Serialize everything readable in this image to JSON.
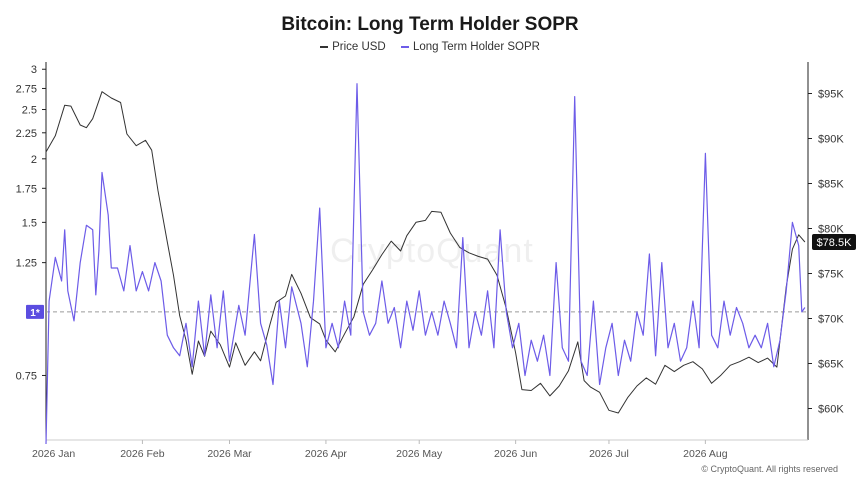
{
  "chart_data": {
    "type": "line",
    "title": "Bitcoin: Long Term Holder SOPR",
    "legend_position": "top-center",
    "grid": false,
    "x_ticks": [
      "2026 Jan",
      "2026 Feb",
      "2026 Mar",
      "2026 Apr",
      "2026 May",
      "2026 Jun",
      "2026 Jul",
      "2026 Aug"
    ],
    "x_range": [
      "2026-01-01",
      "2026-09-03"
    ],
    "left_axis": {
      "scale": "log",
      "ticks": [
        "0.75",
        "1.25",
        "1.5",
        "1.75",
        "2",
        "2.25",
        "2.5",
        "2.75",
        "3"
      ],
      "range": [
        0.56,
        3.1
      ],
      "marker_label": "1*"
    },
    "right_axis": {
      "ticks": [
        "$60K",
        "$65K",
        "$70K",
        "$75K",
        "$80K",
        "$85K",
        "$90K",
        "$95K"
      ],
      "range": [
        56500,
        98500
      ],
      "current_label": "$78.5K"
    },
    "reference_line": 1,
    "series": [
      {
        "name": "Price USD",
        "color": "#333333",
        "axis": "right",
        "points": [
          [
            "2026-01-01",
            88500
          ],
          [
            "2026-01-04",
            90300
          ],
          [
            "2026-01-07",
            93700
          ],
          [
            "2026-01-09",
            93600
          ],
          [
            "2026-01-12",
            91500
          ],
          [
            "2026-01-14",
            91200
          ],
          [
            "2026-01-16",
            92200
          ],
          [
            "2026-01-19",
            95200
          ],
          [
            "2026-01-22",
            94500
          ],
          [
            "2026-01-25",
            94000
          ],
          [
            "2026-01-27",
            90500
          ],
          [
            "2026-01-30",
            89200
          ],
          [
            "2026-02-02",
            89800
          ],
          [
            "2026-02-04",
            88700
          ],
          [
            "2026-02-06",
            84200
          ],
          [
            "2026-02-09",
            78500
          ],
          [
            "2026-02-11",
            74800
          ],
          [
            "2026-02-13",
            70300
          ],
          [
            "2026-02-15",
            67600
          ],
          [
            "2026-02-17",
            63800
          ],
          [
            "2026-02-19",
            67500
          ],
          [
            "2026-02-21",
            65800
          ],
          [
            "2026-02-23",
            68600
          ],
          [
            "2026-02-26",
            67100
          ],
          [
            "2026-03-01",
            64600
          ],
          [
            "2026-03-03",
            67300
          ],
          [
            "2026-03-06",
            64800
          ],
          [
            "2026-03-09",
            66300
          ],
          [
            "2026-03-11",
            65300
          ],
          [
            "2026-03-14",
            69300
          ],
          [
            "2026-03-16",
            71800
          ],
          [
            "2026-03-19",
            72500
          ],
          [
            "2026-03-21",
            74900
          ],
          [
            "2026-03-24",
            72800
          ],
          [
            "2026-03-27",
            70100
          ],
          [
            "2026-03-30",
            69400
          ],
          [
            "2026-04-01",
            67600
          ],
          [
            "2026-04-04",
            66300
          ],
          [
            "2026-04-07",
            68300
          ],
          [
            "2026-04-10",
            70200
          ],
          [
            "2026-04-13",
            73800
          ],
          [
            "2026-04-16",
            75400
          ],
          [
            "2026-04-19",
            77100
          ],
          [
            "2026-04-22",
            78600
          ],
          [
            "2026-04-25",
            77500
          ],
          [
            "2026-04-27",
            79200
          ],
          [
            "2026-04-30",
            80700
          ],
          [
            "2026-05-03",
            80900
          ],
          [
            "2026-05-05",
            81900
          ],
          [
            "2026-05-08",
            81800
          ],
          [
            "2026-05-11",
            79500
          ],
          [
            "2026-05-14",
            77900
          ],
          [
            "2026-05-17",
            77300
          ],
          [
            "2026-05-20",
            76900
          ],
          [
            "2026-05-23",
            76600
          ],
          [
            "2026-05-26",
            74800
          ],
          [
            "2026-05-29",
            71100
          ],
          [
            "2026-06-01",
            66200
          ],
          [
            "2026-06-03",
            62100
          ],
          [
            "2026-06-06",
            62000
          ],
          [
            "2026-06-09",
            62800
          ],
          [
            "2026-06-12",
            61400
          ],
          [
            "2026-06-15",
            62500
          ],
          [
            "2026-06-18",
            64200
          ],
          [
            "2026-06-21",
            67400
          ],
          [
            "2026-06-23",
            63100
          ],
          [
            "2026-06-25",
            62400
          ],
          [
            "2026-06-28",
            61800
          ],
          [
            "2026-07-01",
            59800
          ],
          [
            "2026-07-04",
            59500
          ],
          [
            "2026-07-07",
            61200
          ],
          [
            "2026-07-10",
            62500
          ],
          [
            "2026-07-13",
            63400
          ],
          [
            "2026-07-16",
            62700
          ],
          [
            "2026-07-19",
            64800
          ],
          [
            "2026-07-22",
            64100
          ],
          [
            "2026-07-25",
            64800
          ],
          [
            "2026-07-28",
            65200
          ],
          [
            "2026-07-31",
            64400
          ],
          [
            "2026-08-03",
            62800
          ],
          [
            "2026-08-06",
            63700
          ],
          [
            "2026-08-09",
            64800
          ],
          [
            "2026-08-12",
            65200
          ],
          [
            "2026-08-15",
            65700
          ],
          [
            "2026-08-18",
            65100
          ],
          [
            "2026-08-21",
            65600
          ],
          [
            "2026-08-24",
            64600
          ],
          [
            "2026-08-27",
            73500
          ],
          [
            "2026-08-29",
            77700
          ],
          [
            "2026-08-31",
            79300
          ],
          [
            "2026-09-02",
            78500
          ]
        ]
      },
      {
        "name": "Long Term Holder SOPR",
        "color": "#6d5ce8",
        "axis": "left",
        "points": [
          [
            "2026-01-01",
            0.55
          ],
          [
            "2026-01-02",
            1.05
          ],
          [
            "2026-01-04",
            1.28
          ],
          [
            "2026-01-06",
            1.15
          ],
          [
            "2026-01-07",
            1.45
          ],
          [
            "2026-01-08",
            1.1
          ],
          [
            "2026-01-10",
            0.96
          ],
          [
            "2026-01-12",
            1.25
          ],
          [
            "2026-01-14",
            1.48
          ],
          [
            "2026-01-16",
            1.45
          ],
          [
            "2026-01-17",
            1.08
          ],
          [
            "2026-01-18",
            1.32
          ],
          [
            "2026-01-19",
            1.88
          ],
          [
            "2026-01-21",
            1.55
          ],
          [
            "2026-01-22",
            1.22
          ],
          [
            "2026-01-24",
            1.22
          ],
          [
            "2026-01-26",
            1.1
          ],
          [
            "2026-01-28",
            1.35
          ],
          [
            "2026-01-30",
            1.1
          ],
          [
            "2026-02-01",
            1.2
          ],
          [
            "2026-02-03",
            1.1
          ],
          [
            "2026-02-05",
            1.25
          ],
          [
            "2026-02-07",
            1.15
          ],
          [
            "2026-02-09",
            0.9
          ],
          [
            "2026-02-11",
            0.85
          ],
          [
            "2026-02-13",
            0.82
          ],
          [
            "2026-02-15",
            0.95
          ],
          [
            "2026-02-17",
            0.78
          ],
          [
            "2026-02-19",
            1.05
          ],
          [
            "2026-02-21",
            0.82
          ],
          [
            "2026-02-23",
            1.08
          ],
          [
            "2026-02-25",
            0.85
          ],
          [
            "2026-02-27",
            1.1
          ],
          [
            "2026-03-01",
            0.8
          ],
          [
            "2026-03-04",
            1.03
          ],
          [
            "2026-03-06",
            0.9
          ],
          [
            "2026-03-09",
            1.42
          ],
          [
            "2026-03-11",
            0.95
          ],
          [
            "2026-03-13",
            0.86
          ],
          [
            "2026-03-15",
            0.72
          ],
          [
            "2026-03-17",
            1.05
          ],
          [
            "2026-03-19",
            0.85
          ],
          [
            "2026-03-21",
            1.12
          ],
          [
            "2026-03-24",
            0.95
          ],
          [
            "2026-03-26",
            0.78
          ],
          [
            "2026-03-28",
            1.05
          ],
          [
            "2026-03-30",
            1.6
          ],
          [
            "2026-04-01",
            0.85
          ],
          [
            "2026-04-03",
            0.95
          ],
          [
            "2026-04-05",
            0.85
          ],
          [
            "2026-04-07",
            1.05
          ],
          [
            "2026-04-09",
            0.9
          ],
          [
            "2026-04-11",
            2.81
          ],
          [
            "2026-04-13",
            1.0
          ],
          [
            "2026-04-15",
            0.9
          ],
          [
            "2026-04-17",
            0.95
          ],
          [
            "2026-04-19",
            1.15
          ],
          [
            "2026-04-21",
            0.95
          ],
          [
            "2026-04-23",
            1.02
          ],
          [
            "2026-04-25",
            0.85
          ],
          [
            "2026-04-27",
            1.05
          ],
          [
            "2026-04-29",
            0.92
          ],
          [
            "2026-05-01",
            1.1
          ],
          [
            "2026-05-03",
            0.9
          ],
          [
            "2026-05-05",
            1.0
          ],
          [
            "2026-05-07",
            0.9
          ],
          [
            "2026-05-09",
            1.05
          ],
          [
            "2026-05-11",
            0.95
          ],
          [
            "2026-05-13",
            0.85
          ],
          [
            "2026-05-15",
            1.4
          ],
          [
            "2026-05-17",
            0.85
          ],
          [
            "2026-05-19",
            1.0
          ],
          [
            "2026-05-21",
            0.9
          ],
          [
            "2026-05-23",
            1.1
          ],
          [
            "2026-05-25",
            0.85
          ],
          [
            "2026-05-27",
            1.45
          ],
          [
            "2026-05-29",
            1.0
          ],
          [
            "2026-05-31",
            0.85
          ],
          [
            "2026-06-02",
            0.95
          ],
          [
            "2026-06-04",
            0.75
          ],
          [
            "2026-06-06",
            0.88
          ],
          [
            "2026-06-08",
            0.8
          ],
          [
            "2026-06-10",
            0.9
          ],
          [
            "2026-06-12",
            0.75
          ],
          [
            "2026-06-14",
            1.25
          ],
          [
            "2026-06-16",
            0.85
          ],
          [
            "2026-06-18",
            0.8
          ],
          [
            "2026-06-20",
            2.65
          ],
          [
            "2026-06-22",
            0.8
          ],
          [
            "2026-06-24",
            0.75
          ],
          [
            "2026-06-26",
            1.05
          ],
          [
            "2026-06-28",
            0.72
          ],
          [
            "2026-06-30",
            0.85
          ],
          [
            "2026-07-02",
            0.95
          ],
          [
            "2026-07-04",
            0.75
          ],
          [
            "2026-07-06",
            0.88
          ],
          [
            "2026-07-08",
            0.8
          ],
          [
            "2026-07-10",
            1.0
          ],
          [
            "2026-07-12",
            0.9
          ],
          [
            "2026-07-14",
            1.3
          ],
          [
            "2026-07-16",
            0.82
          ],
          [
            "2026-07-18",
            1.25
          ],
          [
            "2026-07-20",
            0.85
          ],
          [
            "2026-07-22",
            0.95
          ],
          [
            "2026-07-24",
            0.8
          ],
          [
            "2026-07-26",
            0.85
          ],
          [
            "2026-07-28",
            1.05
          ],
          [
            "2026-07-30",
            0.85
          ],
          [
            "2026-08-01",
            2.05
          ],
          [
            "2026-08-03",
            0.9
          ],
          [
            "2026-08-05",
            0.85
          ],
          [
            "2026-08-07",
            1.05
          ],
          [
            "2026-08-09",
            0.9
          ],
          [
            "2026-08-11",
            1.02
          ],
          [
            "2026-08-13",
            0.95
          ],
          [
            "2026-08-15",
            0.85
          ],
          [
            "2026-08-17",
            0.9
          ],
          [
            "2026-08-19",
            0.85
          ],
          [
            "2026-08-21",
            0.95
          ],
          [
            "2026-08-23",
            0.78
          ],
          [
            "2026-08-25",
            0.88
          ],
          [
            "2026-08-27",
            1.1
          ],
          [
            "2026-08-29",
            1.5
          ],
          [
            "2026-08-31",
            1.35
          ],
          [
            "2026-09-01",
            1.0
          ],
          [
            "2026-09-02",
            1.02
          ]
        ]
      }
    ]
  },
  "watermark": "CryptoQuant",
  "credit": "© CryptoQuant. All rights reserved"
}
